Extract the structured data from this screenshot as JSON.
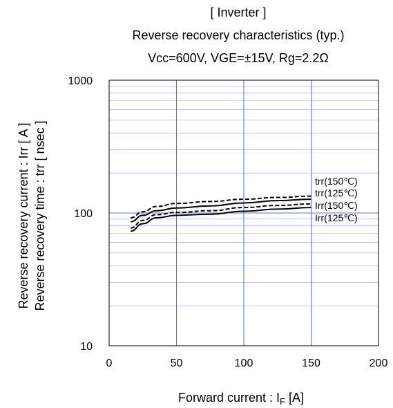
{
  "chart_data": {
    "type": "line",
    "title": [
      "[ Inverter ]",
      "Reverse recovery characteristics  (typ.)",
      "Vcc=600V,  VGE=±15V,  Rg=2.2Ω"
    ],
    "xlabel": {
      "text": "Forward current : I",
      "sub": "F",
      "unit": " [A]"
    },
    "ylabel": [
      "Reverse recovery current  :  Irr  [ A ]",
      "Reverse recovery time  :  trr  [ nsec ]"
    ],
    "xlim": [
      0,
      200
    ],
    "ylim": [
      10,
      1000
    ],
    "yscale": "log",
    "grid": true,
    "x_ticks": [
      "0",
      "50",
      "100",
      "150",
      "200"
    ],
    "y_ticks": [
      "10",
      "100",
      "1000"
    ],
    "series": [
      {
        "name": "trr(150℃)",
        "style": "dashed",
        "x": [
          16,
          25,
          35,
          50,
          75,
          100,
          125,
          150
        ],
        "y": [
          92,
          102,
          112,
          118,
          122,
          127,
          131,
          134
        ]
      },
      {
        "name": "trr(125℃)",
        "style": "solid",
        "x": [
          16,
          25,
          35,
          50,
          75,
          100,
          125,
          150
        ],
        "y": [
          86,
          96,
          104,
          109,
          113,
          119,
          124,
          127
        ]
      },
      {
        "name": "Irr(150℃)",
        "style": "dashed",
        "x": [
          16,
          25,
          35,
          50,
          75,
          100,
          125,
          150
        ],
        "y": [
          77,
          88,
          97,
          101,
          104,
          110,
          114,
          117
        ]
      },
      {
        "name": "Irr(125℃)",
        "style": "solid",
        "x": [
          16,
          25,
          35,
          50,
          75,
          100,
          125,
          150
        ],
        "y": [
          73,
          83,
          92,
          96,
          98,
          103,
          107,
          110
        ]
      }
    ],
    "colors": {
      "major_grid": "#5a6fd8",
      "minor_grid": "#9aa8e6",
      "line": "#000000",
      "frame": "#000000"
    }
  }
}
